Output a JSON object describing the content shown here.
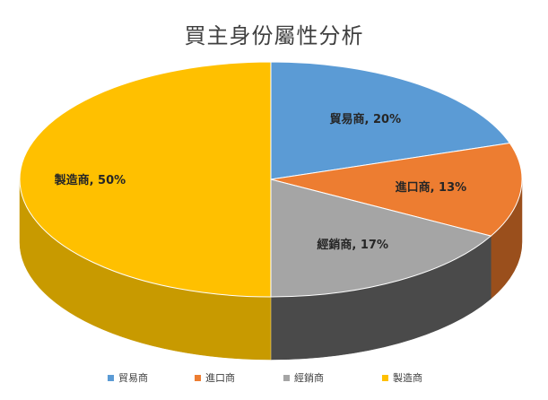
{
  "chart_data": {
    "type": "pie",
    "title": "買主身份屬性分析",
    "categories": [
      "貿易商",
      "進口商",
      "經銷商",
      "製造商"
    ],
    "values": [
      20,
      13,
      17,
      50
    ],
    "data_labels": [
      "貿易商, 20%",
      "進口商, 13%",
      "經銷商, 17%",
      "製造商, 50%"
    ],
    "colors": [
      "#5B9BD5",
      "#ED7D31",
      "#A5A5A5",
      "#FFC000"
    ],
    "side_colors": [
      "#41729F",
      "#9A4F1C",
      "#4A4A4A",
      "#C89A00"
    ],
    "legend_position": "bottom",
    "style": "3d"
  }
}
